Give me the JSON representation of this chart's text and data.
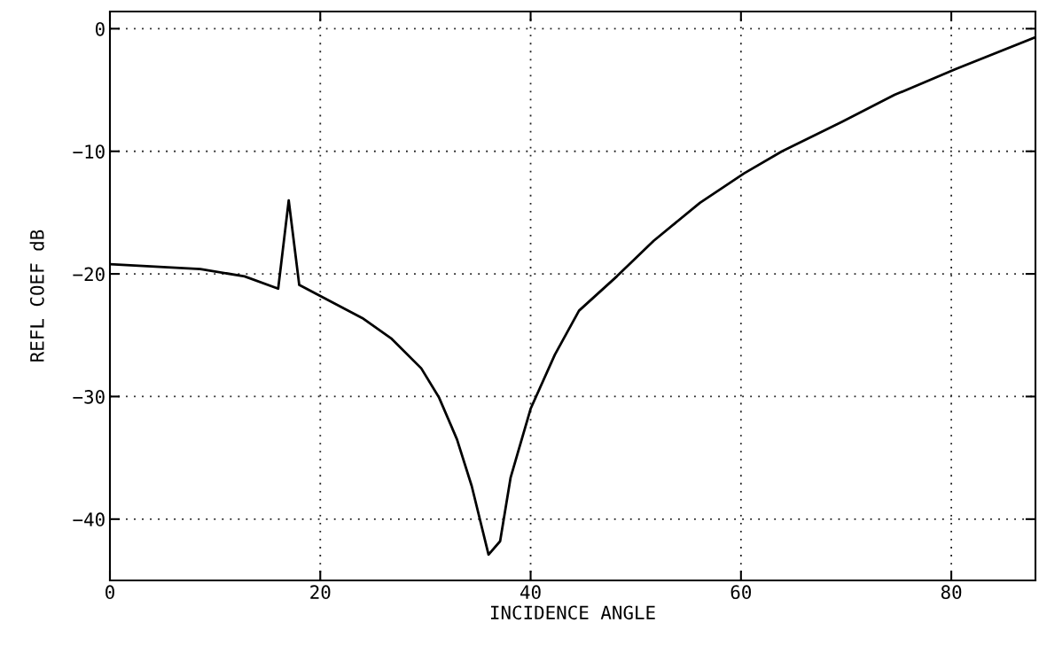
{
  "chart_data": {
    "type": "line",
    "xlabel": "INCIDENCE ANGLE",
    "ylabel": "REFL COEF dB",
    "x": [
      0,
      8.6,
      12.8,
      16.0,
      17.0,
      18.0,
      20,
      24.0,
      26.8,
      29.6,
      31.3,
      33.0,
      34.4,
      36.0,
      37.1,
      38.1,
      40,
      42.3,
      44.6,
      48.2,
      51.7,
      56.1,
      60.3,
      63.9,
      69.6,
      74.6,
      80.4,
      88
    ],
    "series": [
      {
        "color": "#000000",
        "values": [
          -19.2,
          -19.6,
          -20.2,
          -21.2,
          -14.0,
          -20.9,
          -21.8,
          -23.6,
          -25.3,
          -27.7,
          -30.1,
          -33.5,
          -37.3,
          -42.9,
          -41.8,
          -36.6,
          -31.0,
          -26.6,
          -23.0,
          -20.2,
          -17.3,
          -14.2,
          -11.8,
          -10.0,
          -7.6,
          -5.4,
          -3.3,
          -0.7
        ]
      }
    ],
    "xlim": [
      0,
      88
    ],
    "ylim": [
      -45,
      1.4
    ],
    "xticks": [
      0,
      20,
      40,
      60,
      80
    ],
    "yticks": [
      -40,
      -30,
      -20,
      -10,
      0
    ],
    "grid": true,
    "line_style": "solid",
    "marker": "none"
  }
}
